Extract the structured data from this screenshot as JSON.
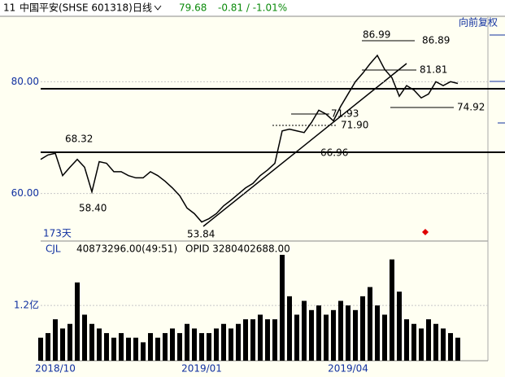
{
  "header": {
    "code": "11",
    "name": "中国平安(SHSE 601318)",
    "period": "日线",
    "price": "79.68",
    "change": "-0.81 / -1.01%"
  },
  "adjust_label": "向前复权",
  "days_label": "173天",
  "volume_header": {
    "name": "CJL",
    "value": "40873296.00(49:51)",
    "opid": "OPID 3280402688.00"
  },
  "annotations": [
    "86.99",
    "86.89",
    "81.81",
    "74.92",
    "71.93",
    "71.90",
    "66.96",
    "68.32",
    "58.40",
    "53.84"
  ],
  "chart_data": [
    {
      "type": "line",
      "color": "#000000",
      "categories": [
        null,
        null,
        "2018/10",
        null,
        null,
        null,
        null,
        null,
        null,
        null,
        null,
        null,
        null,
        null,
        null,
        null,
        null,
        null,
        null,
        null,
        null,
        null,
        "2019/01",
        null,
        null,
        null,
        null,
        null,
        null,
        null,
        null,
        null,
        null,
        null,
        null,
        null,
        null,
        null,
        null,
        null,
        null,
        null,
        "2019/04",
        null,
        null,
        null,
        null,
        null,
        null,
        null,
        null,
        null,
        null,
        null,
        null,
        null,
        null,
        null
      ],
      "values": [
        66.1,
        66.9,
        67.2,
        63.2,
        64.7,
        66.1,
        64.7,
        60.3,
        65.7,
        65.4,
        63.9,
        63.9,
        63.2,
        62.8,
        62.8,
        63.9,
        63.2,
        62.2,
        61.0,
        59.6,
        57.4,
        56.4,
        54.9,
        55.5,
        56.4,
        57.8,
        58.8,
        59.9,
        61.0,
        61.8,
        63.2,
        64.2,
        65.4,
        71.2,
        71.5,
        71.2,
        70.9,
        72.7,
        74.9,
        74.2,
        73.0,
        75.6,
        77.8,
        80.0,
        81.5,
        83.2,
        84.7,
        82.2,
        80.7,
        77.4,
        79.3,
        78.5,
        77.1,
        77.8,
        80.0,
        79.3,
        80.0,
        79.68
      ],
      "ylim": [
        51.5,
        91.7
      ],
      "yticks": [
        {
          "value": 60,
          "label": "60.00"
        },
        {
          "value": 80,
          "label": "80.00"
        }
      ]
    },
    {
      "type": "bar",
      "color": "#000000",
      "values": [
        0.5,
        0.6,
        0.9,
        0.7,
        0.8,
        1.7,
        1.0,
        0.8,
        0.7,
        0.6,
        0.5,
        0.6,
        0.5,
        0.5,
        0.4,
        0.6,
        0.5,
        0.6,
        0.7,
        0.6,
        0.8,
        0.7,
        0.6,
        0.6,
        0.7,
        0.8,
        0.7,
        0.8,
        0.9,
        0.9,
        1.0,
        0.9,
        0.9,
        2.3,
        1.4,
        1.0,
        1.3,
        1.1,
        1.2,
        1.0,
        1.1,
        1.3,
        1.2,
        1.1,
        1.4,
        1.6,
        1.2,
        1.0,
        2.2,
        1.5,
        0.9,
        0.8,
        0.7,
        0.9,
        0.8,
        0.7,
        0.6,
        0.5
      ],
      "ylim": [
        0,
        2.6
      ],
      "yticks": [
        {
          "value": 1.2,
          "label": "1.2亿"
        }
      ]
    }
  ]
}
